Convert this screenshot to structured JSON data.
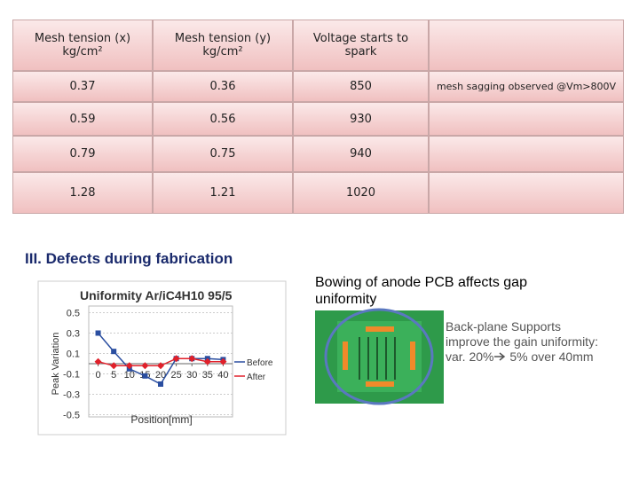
{
  "table": {
    "header": [
      [
        "Mesh tension (x)",
        "kg/cm²"
      ],
      [
        "Mesh tension (y)",
        "kg/cm²"
      ],
      [
        "Voltage starts to",
        "spark"
      ]
    ],
    "rows": [
      [
        0.37,
        0.36,
        850,
        "mesh sagging observed @Vm>800V"
      ],
      [
        0.59,
        0.56,
        930
      ],
      [
        0.79,
        0.75,
        940
      ],
      [
        1.28,
        1.21,
        1020
      ]
    ]
  },
  "section_title": "III.   Defects during fabrication",
  "bowing_text": "Bowing  of anode PCB affects gap uniformity",
  "support_text": [
    "Back-plane Supports",
    "improve the gain uniformity:",
    "var. 20%",
    "5% over 40mm"
  ],
  "chart_data": {
    "type": "line",
    "title": "Uniformity Ar/iC4H10 95/5",
    "x_label": "Position[mm]",
    "y_label": "Peak Variation",
    "x": [
      0,
      5,
      10,
      15,
      20,
      25,
      30,
      35,
      40
    ],
    "series": [
      {
        "name": "Before",
        "color": "#2a4ea0",
        "marker": "square",
        "values": [
          0.3,
          0.12,
          -0.05,
          -0.12,
          -0.2,
          0.05,
          0.05,
          0.05,
          0.04
        ]
      },
      {
        "name": "After",
        "color": "#e0202a",
        "marker": "diamond",
        "values": [
          0.02,
          -0.02,
          -0.02,
          -0.02,
          -0.02,
          0.05,
          0.05,
          0.02,
          0.02
        ]
      }
    ],
    "xlim": [
      -3,
      43
    ],
    "xticks": [
      0,
      5,
      10,
      15,
      20,
      25,
      30,
      35,
      40
    ],
    "ylim": [
      -0.6,
      0.6
    ],
    "yticks": [
      0.5,
      0.3,
      0.1,
      -0.1,
      -0.3,
      -0.5
    ],
    "grid": true
  }
}
